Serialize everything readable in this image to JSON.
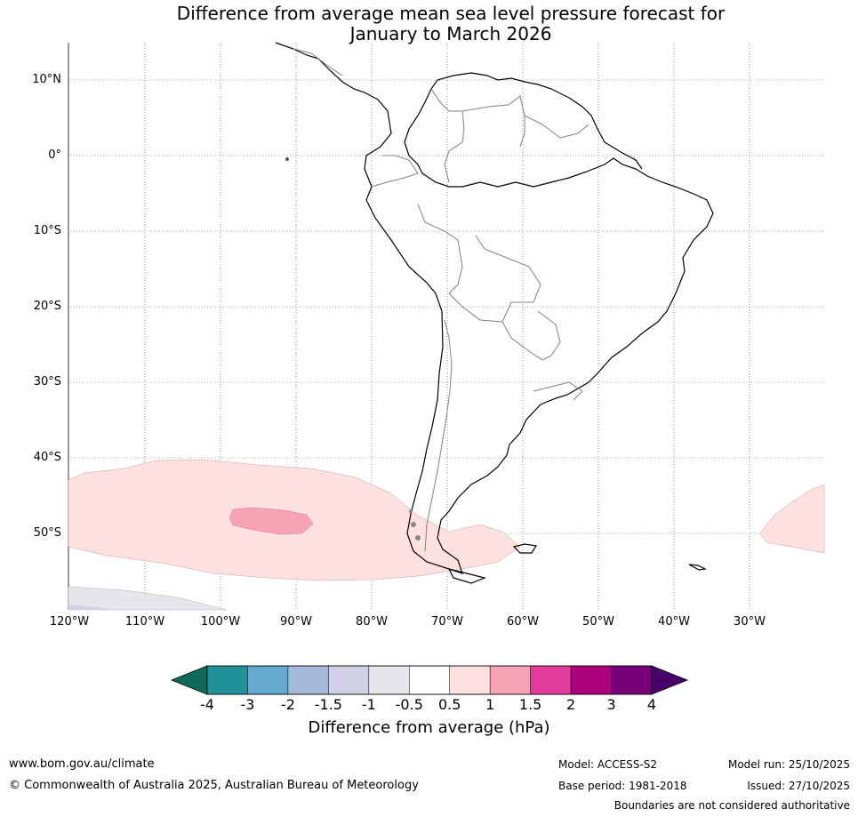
{
  "title": {
    "line1": "Difference from average mean sea level pressure forecast for",
    "line2": "January to March 2026"
  },
  "latitude_labels": [
    "10°N",
    "0°",
    "10°S",
    "20°S",
    "30°S",
    "40°S",
    "50°S"
  ],
  "longitude_labels": [
    "120°W",
    "110°W",
    "100°W",
    "90°W",
    "80°W",
    "70°W",
    "60°W",
    "50°W",
    "40°W",
    "30°W"
  ],
  "colorbar": {
    "label": "Difference from average (hPa)",
    "ticks": [
      "-4",
      "-3",
      "-2",
      "-1.5",
      "-1",
      "-0.5",
      "0.5",
      "1",
      "1.5",
      "2",
      "3",
      "4"
    ],
    "colors": {
      "below_min": "#0e6b5a",
      "bins": [
        "#1f9199",
        "#64a9d0",
        "#a4b9d8",
        "#d0d1e6",
        "#e8e6ea",
        "#ffffff",
        "#fde0e0",
        "#f8a2b8",
        "#e13c9b",
        "#ad007b",
        "#780077"
      ],
      "above_max": "#4a006a"
    }
  },
  "map_colors": {
    "pink_light": "#fde0e0",
    "pink_mid": "#f8a2b8",
    "grey_low": "#e8e6ea",
    "blue_low": "#d0d1e6",
    "coast": "#000000",
    "borders": "#808080"
  },
  "footer": {
    "website": "www.bom.gov.au/climate",
    "copyright": "© Commonwealth of Australia 2025, Australian Bureau of Meteorology",
    "model": "Model: ACCESS-S2",
    "base_period": "Base period: 1981-2018",
    "model_run": "Model run: 25/10/2025",
    "issued": "Issued: 27/10/2025",
    "disclaimer": "Boundaries are not considered authoritative"
  }
}
